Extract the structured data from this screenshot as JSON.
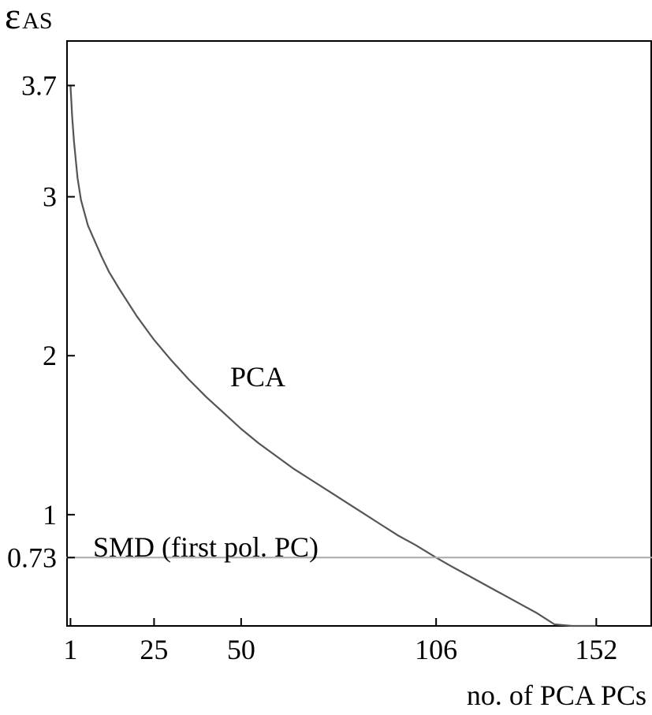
{
  "chart_data": {
    "type": "line",
    "ylabel": "ε",
    "ylabel_subscript": "AS",
    "xlabel": "no. of PCA PCs",
    "x_ticks": [
      1,
      25,
      50,
      106,
      152
    ],
    "y_ticks": [
      0.73,
      1,
      2,
      3,
      3.7
    ],
    "y_tick_labels": [
      "0.73",
      "1",
      "2",
      "3",
      "3.7"
    ],
    "x_tick_labels": [
      "1",
      "25",
      "50",
      "106",
      "152"
    ],
    "xlim": [
      0,
      168
    ],
    "ylim": [
      0.3,
      3.98
    ],
    "grid": false,
    "series": [
      {
        "name": "PCA",
        "color": "#555555",
        "x": [
          1,
          1.5,
          2,
          3,
          4,
          5,
          6,
          8,
          10,
          12,
          15,
          20,
          25,
          30,
          35,
          40,
          45,
          50,
          55,
          60,
          65,
          70,
          75,
          80,
          85,
          90,
          95,
          100,
          106,
          110,
          115,
          120,
          125,
          130,
          135,
          140,
          145,
          148,
          150,
          152
        ],
        "y": [
          3.7,
          3.5,
          3.35,
          3.12,
          2.98,
          2.9,
          2.82,
          2.72,
          2.62,
          2.53,
          2.42,
          2.25,
          2.1,
          1.97,
          1.85,
          1.74,
          1.64,
          1.54,
          1.45,
          1.37,
          1.29,
          1.22,
          1.15,
          1.08,
          1.01,
          0.94,
          0.87,
          0.81,
          0.73,
          0.68,
          0.62,
          0.56,
          0.5,
          0.44,
          0.38,
          0.31,
          0.22,
          0.15,
          0.1,
          0.05
        ]
      },
      {
        "name": "SMD (first pol. PC)",
        "color": "#aaaaaa",
        "x": [
          0,
          168
        ],
        "y": [
          0.73,
          0.73
        ]
      }
    ],
    "annotations": [
      {
        "text": "PCA",
        "x": 45,
        "y": 1.74
      },
      {
        "text": "SMD (first pol. PC)",
        "x": 6,
        "y": 0.5
      }
    ]
  }
}
